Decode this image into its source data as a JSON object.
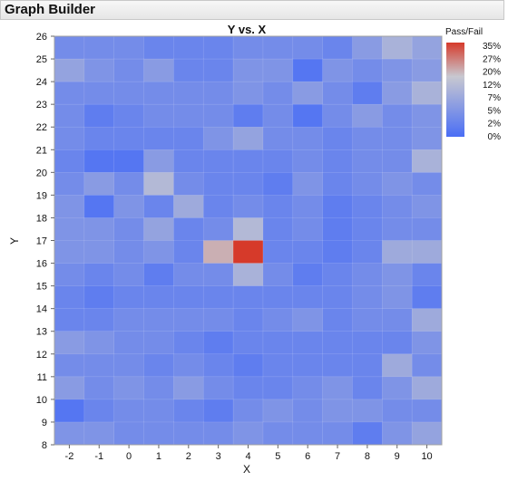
{
  "window": {
    "title": "Graph Builder"
  },
  "chart_data": {
    "type": "heatmap",
    "title": "Y vs. X",
    "xlabel": "X",
    "ylabel": "Y",
    "x_categories": [
      -2,
      -1,
      0,
      1,
      2,
      3,
      4,
      5,
      6,
      7,
      8,
      9,
      10
    ],
    "y_ticks": [
      8,
      9,
      10,
      11,
      12,
      13,
      14,
      15,
      16,
      17,
      18,
      19,
      20,
      21,
      22,
      23,
      24,
      25,
      26
    ],
    "y_range": [
      8,
      26
    ],
    "color_variable": "Pass/Fail",
    "color_scale": {
      "min": 0,
      "max": 35,
      "tick_labels": [
        "35%",
        "27%",
        "20%",
        "12%",
        "7%",
        "5%",
        "2%",
        "0%"
      ],
      "low_color": "#4a6ef5",
      "mid_color": "#c8c8d0",
      "high_color": "#d63a2a"
    },
    "grid": false,
    "legend_position": "right",
    "rows_from_top_y": [
      25,
      24,
      23,
      22,
      21,
      20,
      19,
      18,
      17,
      16,
      15,
      14,
      13,
      12,
      11,
      10,
      9,
      8
    ],
    "values": [
      [
        4,
        4,
        4,
        3,
        3,
        3,
        4,
        4,
        4,
        3,
        6,
        9,
        7
      ],
      [
        7,
        5,
        4,
        6,
        3,
        3,
        5,
        5,
        1,
        5,
        4,
        5,
        6
      ],
      [
        4,
        4,
        4,
        4,
        4,
        4,
        5,
        4,
        6,
        4,
        2,
        6,
        9
      ],
      [
        4,
        2,
        3,
        4,
        4,
        4,
        2,
        4,
        1,
        4,
        6,
        4,
        5
      ],
      [
        4,
        3,
        3,
        3,
        3,
        5,
        7,
        4,
        4,
        3,
        4,
        4,
        5
      ],
      [
        3,
        1,
        1,
        6,
        3,
        3,
        3,
        3,
        4,
        3,
        4,
        4,
        9
      ],
      [
        4,
        6,
        4,
        10,
        4,
        3,
        3,
        2,
        5,
        3,
        4,
        5,
        4
      ],
      [
        5,
        1,
        5,
        3,
        8,
        3,
        4,
        3,
        4,
        2,
        3,
        4,
        5
      ],
      [
        5,
        5,
        4,
        7,
        3,
        4,
        10,
        3,
        4,
        2,
        3,
        4,
        4
      ],
      [
        5,
        5,
        4,
        5,
        3,
        16,
        35,
        3,
        3,
        2,
        3,
        8,
        8
      ],
      [
        4,
        3,
        4,
        2,
        4,
        4,
        9,
        4,
        2,
        3,
        4,
        5,
        3
      ],
      [
        3,
        2,
        3,
        3,
        3,
        3,
        3,
        3,
        3,
        3,
        4,
        5,
        2
      ],
      [
        3,
        3,
        4,
        4,
        4,
        4,
        3,
        4,
        5,
        3,
        4,
        4,
        8
      ],
      [
        6,
        5,
        4,
        4,
        3,
        2,
        3,
        3,
        3,
        3,
        3,
        3,
        5
      ],
      [
        4,
        4,
        4,
        3,
        4,
        3,
        2,
        3,
        3,
        3,
        3,
        8,
        4
      ],
      [
        6,
        4,
        5,
        4,
        6,
        4,
        3,
        3,
        4,
        5,
        3,
        5,
        8
      ],
      [
        1,
        3,
        4,
        4,
        3,
        2,
        4,
        5,
        4,
        5,
        5,
        4,
        4
      ],
      [
        5,
        5,
        4,
        4,
        4,
        4,
        5,
        4,
        4,
        4,
        2,
        5,
        7
      ]
    ]
  }
}
